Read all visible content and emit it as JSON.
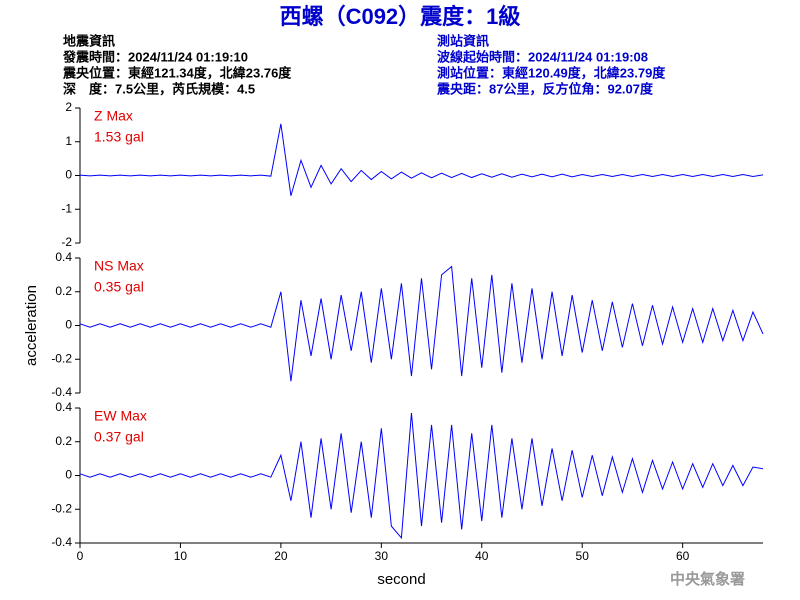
{
  "header": {
    "title": "西螺（C092）震度：1級",
    "left": [
      "地震資訊",
      "發震時間：2024/11/24 01:19:10",
      "震央位置：東經121.34度，北緯23.76度",
      "深　度：7.5公里，芮氏規模：4.5"
    ],
    "right": [
      "測站資訊",
      "波線起始時間：2024/11/24 01:19:08",
      "測站位置：東經120.49度，北緯23.79度",
      "震央距：87公里，反方位角：92.07度"
    ],
    "footer": "中央氣象署"
  },
  "chart_data": [
    {
      "type": "line",
      "annotations": [
        "Z Max",
        "1.53 gal"
      ],
      "xlim": [
        0,
        68
      ],
      "ylim": [
        -2,
        2
      ],
      "yticks": [
        -2,
        -1,
        0,
        1,
        2
      ],
      "x": [
        0,
        1,
        2,
        3,
        4,
        5,
        6,
        7,
        8,
        9,
        10,
        11,
        12,
        13,
        14,
        15,
        16,
        17,
        18,
        19,
        20,
        21,
        22,
        23,
        24,
        25,
        26,
        27,
        28,
        29,
        30,
        31,
        32,
        33,
        34,
        35,
        36,
        37,
        38,
        39,
        40,
        41,
        42,
        43,
        44,
        45,
        46,
        47,
        48,
        49,
        50,
        51,
        52,
        53,
        54,
        55,
        56,
        57,
        58,
        59,
        60,
        61,
        62,
        63,
        64,
        65,
        66,
        67,
        68
      ],
      "series": [
        {
          "color": "#0000ff",
          "values": [
            0.01,
            -0.01,
            0.01,
            -0.01,
            0.01,
            -0.01,
            0.01,
            -0.01,
            0.01,
            -0.01,
            0.01,
            -0.01,
            0.01,
            -0.01,
            0.01,
            -0.01,
            0.01,
            -0.01,
            0.01,
            -0.02,
            1.53,
            -0.6,
            0.45,
            -0.35,
            0.3,
            -0.25,
            0.2,
            -0.18,
            0.15,
            -0.12,
            0.12,
            -0.1,
            0.1,
            -0.08,
            0.08,
            -0.07,
            0.07,
            -0.06,
            0.06,
            -0.06,
            0.05,
            -0.05,
            0.05,
            -0.05,
            0.04,
            -0.04,
            0.04,
            -0.04,
            0.04,
            -0.04,
            0.03,
            -0.03,
            0.03,
            -0.03,
            0.03,
            -0.03,
            0.03,
            -0.03,
            0.03,
            -0.03,
            0.03,
            -0.03,
            0.03,
            -0.03,
            0.03,
            -0.03,
            0.03,
            -0.03,
            0.02
          ]
        }
      ]
    },
    {
      "type": "line",
      "annotations": [
        "NS Max",
        "0.35 gal"
      ],
      "ylabel": "acceleration",
      "xlim": [
        0,
        68
      ],
      "ylim": [
        -0.4,
        0.4
      ],
      "yticks": [
        -0.4,
        -0.2,
        0,
        0.2,
        0.4
      ],
      "x": [
        0,
        1,
        2,
        3,
        4,
        5,
        6,
        7,
        8,
        9,
        10,
        11,
        12,
        13,
        14,
        15,
        16,
        17,
        18,
        19,
        20,
        21,
        22,
        23,
        24,
        25,
        26,
        27,
        28,
        29,
        30,
        31,
        32,
        33,
        34,
        35,
        36,
        37,
        38,
        39,
        40,
        41,
        42,
        43,
        44,
        45,
        46,
        47,
        48,
        49,
        50,
        51,
        52,
        53,
        54,
        55,
        56,
        57,
        58,
        59,
        60,
        61,
        62,
        63,
        64,
        65,
        66,
        67,
        68
      ],
      "series": [
        {
          "color": "#0000ff",
          "values": [
            0.01,
            -0.01,
            0.01,
            -0.01,
            0.01,
            -0.01,
            0.01,
            -0.01,
            0.01,
            -0.01,
            0.01,
            -0.01,
            0.01,
            -0.01,
            0.01,
            -0.01,
            0.01,
            -0.01,
            0.01,
            -0.01,
            0.2,
            -0.33,
            0.15,
            -0.18,
            0.16,
            -0.2,
            0.18,
            -0.15,
            0.2,
            -0.22,
            0.22,
            -0.2,
            0.25,
            -0.3,
            0.28,
            -0.26,
            0.3,
            0.35,
            -0.3,
            0.28,
            -0.25,
            0.3,
            -0.28,
            0.25,
            -0.22,
            0.22,
            -0.2,
            0.2,
            -0.18,
            0.18,
            -0.16,
            0.15,
            -0.15,
            0.14,
            -0.13,
            0.13,
            -0.12,
            0.12,
            -0.11,
            0.11,
            -0.1,
            0.1,
            -0.1,
            0.1,
            -0.09,
            0.09,
            -0.09,
            0.08,
            -0.05
          ]
        }
      ]
    },
    {
      "type": "line",
      "annotations": [
        "EW Max",
        "0.37 gal"
      ],
      "xlabel": "second",
      "xlim": [
        0,
        68
      ],
      "xticks": [
        0,
        10,
        20,
        30,
        40,
        50,
        60
      ],
      "ylim": [
        -0.4,
        0.4
      ],
      "yticks": [
        -0.4,
        -0.2,
        0,
        0.2,
        0.4
      ],
      "x": [
        0,
        1,
        2,
        3,
        4,
        5,
        6,
        7,
        8,
        9,
        10,
        11,
        12,
        13,
        14,
        15,
        16,
        17,
        18,
        19,
        20,
        21,
        22,
        23,
        24,
        25,
        26,
        27,
        28,
        29,
        30,
        31,
        32,
        33,
        34,
        35,
        36,
        37,
        38,
        39,
        40,
        41,
        42,
        43,
        44,
        45,
        46,
        47,
        48,
        49,
        50,
        51,
        52,
        53,
        54,
        55,
        56,
        57,
        58,
        59,
        60,
        61,
        62,
        63,
        64,
        65,
        66,
        67,
        68
      ],
      "series": [
        {
          "color": "#0000ff",
          "values": [
            0.01,
            -0.01,
            0.01,
            -0.01,
            0.01,
            -0.01,
            0.01,
            -0.01,
            0.01,
            -0.01,
            0.01,
            -0.01,
            0.01,
            -0.01,
            0.01,
            -0.01,
            0.01,
            -0.01,
            0.01,
            -0.01,
            0.12,
            -0.15,
            0.2,
            -0.25,
            0.22,
            -0.2,
            0.25,
            -0.22,
            0.2,
            -0.25,
            0.28,
            -0.3,
            -0.37,
            0.37,
            -0.3,
            0.3,
            -0.28,
            0.3,
            -0.32,
            0.25,
            -0.27,
            0.3,
            -0.25,
            0.22,
            -0.2,
            0.22,
            -0.18,
            0.16,
            -0.15,
            0.15,
            -0.13,
            0.12,
            -0.12,
            0.11,
            -0.1,
            0.1,
            -0.1,
            0.09,
            -0.08,
            0.08,
            -0.08,
            0.07,
            -0.07,
            0.07,
            -0.06,
            0.06,
            -0.06,
            0.05,
            0.04
          ]
        }
      ]
    }
  ]
}
